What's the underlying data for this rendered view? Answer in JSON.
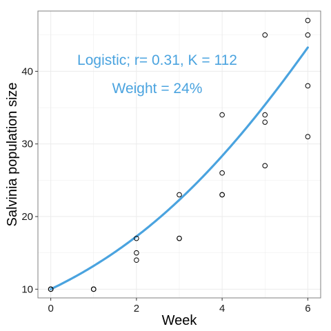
{
  "chart_data": {
    "type": "scatter",
    "title": "",
    "xlabel": "Week",
    "ylabel": "Salvinia population size",
    "xlim": [
      -0.3,
      6.3
    ],
    "ylim": [
      8.8,
      48.3
    ],
    "x_ticks": [
      0,
      2,
      4,
      6
    ],
    "y_ticks": [
      10,
      20,
      30,
      40
    ],
    "grid": true,
    "points": [
      {
        "x": 0,
        "y": 10
      },
      {
        "x": 0,
        "y": 10
      },
      {
        "x": 0,
        "y": 10
      },
      {
        "x": 1,
        "y": 10
      },
      {
        "x": 1,
        "y": 10
      },
      {
        "x": 1,
        "y": 10
      },
      {
        "x": 2,
        "y": 17
      },
      {
        "x": 2,
        "y": 15
      },
      {
        "x": 2,
        "y": 14
      },
      {
        "x": 3,
        "y": 23
      },
      {
        "x": 3,
        "y": 17
      },
      {
        "x": 3,
        "y": 17
      },
      {
        "x": 4,
        "y": 34
      },
      {
        "x": 4,
        "y": 26
      },
      {
        "x": 4,
        "y": 23
      },
      {
        "x": 4,
        "y": 23
      },
      {
        "x": 5,
        "y": 45
      },
      {
        "x": 5,
        "y": 34
      },
      {
        "x": 5,
        "y": 33
      },
      {
        "x": 5,
        "y": 27
      },
      {
        "x": 6,
        "y": 47
      },
      {
        "x": 6,
        "y": 45
      },
      {
        "x": 6,
        "y": 38
      },
      {
        "x": 6,
        "y": 31
      }
    ],
    "fit": {
      "model": "logistic",
      "r": 0.31,
      "K": 112,
      "N0": 10,
      "color": "#4aa3df"
    },
    "annotations": [
      {
        "text": "Logistic; r= 0.31, K = 112"
      },
      {
        "text": "Weight = 24%"
      }
    ]
  },
  "colors": {
    "fit_line": "#4aa3df",
    "annotation_text": "#4aa3df",
    "point_stroke": "#000000",
    "grid": "#ebebeb",
    "panel_border": "#7f7f7f"
  }
}
